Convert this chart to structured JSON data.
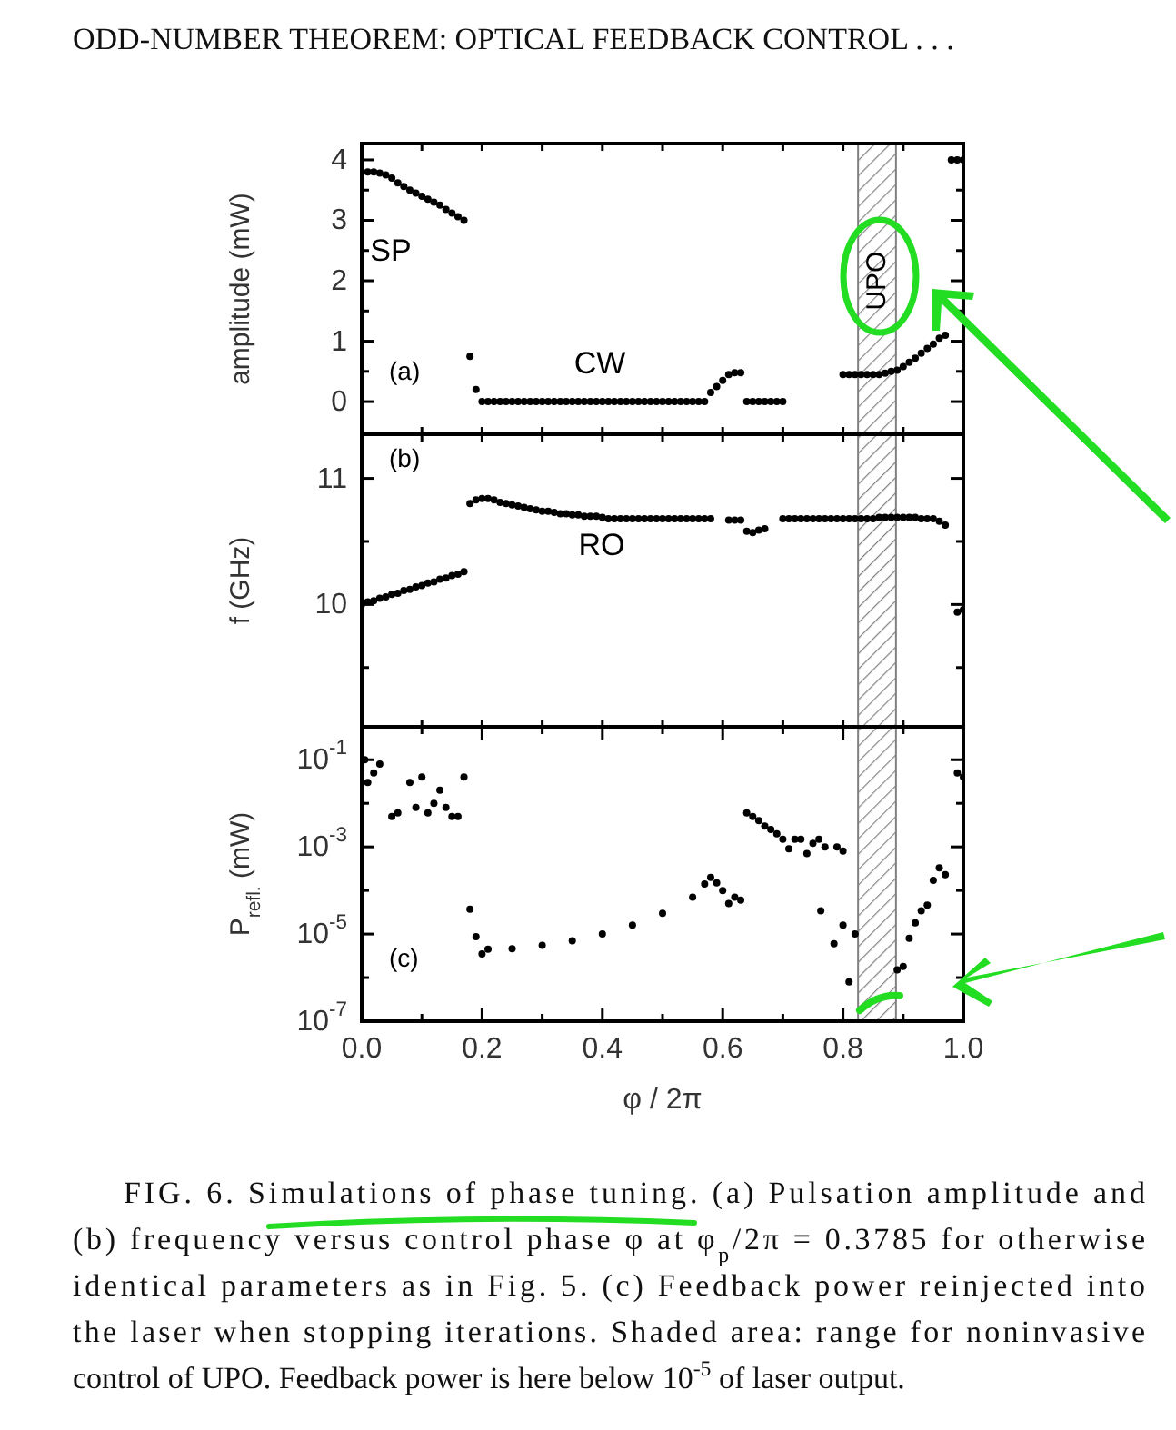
{
  "chart_data": [
    {
      "type": "scatter",
      "title": "ODD-NUMBER THEOREM: OPTICAL FEEDBACK CONTROL . . .",
      "ylabel": "amplitude (mW)",
      "marker": "circle",
      "tick_labels": "y",
      "xlim": [
        0,
        1
      ],
      "xticks": [
        {
          "value": 0,
          "label": null
        },
        {
          "value": 0.1,
          "label": null
        },
        {
          "value": 0.2,
          "label": null
        },
        {
          "value": 0.3,
          "label": null
        },
        {
          "value": 0.4,
          "label": null
        },
        {
          "value": 0.5,
          "label": null
        },
        {
          "value": 0.6,
          "label": null
        },
        {
          "value": 0.7,
          "label": null
        },
        {
          "value": 0.8,
          "label": null
        },
        {
          "value": 0.9,
          "label": null
        },
        {
          "value": 1,
          "label": null
        }
      ],
      "ylim": [
        -0.54,
        4.27
      ],
      "yticks": [
        0,
        {
          "value": 0.5,
          "label": null
        },
        1,
        {
          "value": 1.5,
          "label": null
        },
        2,
        {
          "value": 2.5,
          "label": null
        },
        3,
        {
          "value": 3.5,
          "label": null
        },
        4
      ],
      "bands": [
        {
          "axis": "x",
          "from": 0.825,
          "to": 0.888,
          "label": "UPO",
          "color": "#808080"
        }
      ],
      "annotations": [
        "(a)",
        "SP",
        "CW"
      ],
      "x": [
        0,
        0.01,
        0.02,
        0.03,
        0.04,
        0.05,
        0.06,
        0.07,
        0.08,
        0.09,
        0.1,
        0.11,
        0.12,
        0.13,
        0.14,
        0.15,
        0.16,
        0.17,
        0.18,
        0.19,
        0.2,
        0.21,
        0.22,
        0.23,
        0.24,
        0.25,
        0.26,
        0.27,
        0.28,
        0.29,
        0.3,
        0.31,
        0.32,
        0.33,
        0.34,
        0.35,
        0.36,
        0.37,
        0.38,
        0.39,
        0.4,
        0.41,
        0.42,
        0.43,
        0.44,
        0.45,
        0.46,
        0.47,
        0.48,
        0.49,
        0.5,
        0.51,
        0.52,
        0.53,
        0.54,
        0.55,
        0.56,
        0.57,
        0.58,
        0.59,
        0.6,
        0.61,
        0.62,
        0.63,
        0.64,
        0.65,
        0.66,
        0.67,
        0.68,
        0.69,
        0.7,
        0.8,
        0.81,
        0.82,
        0.83,
        0.84,
        0.85,
        0.86,
        0.87,
        0.88,
        0.89,
        0.9,
        0.91,
        0.92,
        0.93,
        0.94,
        0.95,
        0.96,
        0.97,
        0.98,
        0.99,
        1
      ],
      "series": [
        {
          "color": "#000000",
          "values": [
            3.8,
            3.8,
            3.8,
            3.78,
            3.75,
            3.7,
            3.62,
            3.56,
            3.5,
            3.45,
            3.4,
            3.35,
            3.3,
            3.25,
            3.18,
            3.12,
            3.06,
            3.0,
            0.75,
            0.2,
            0,
            0,
            0,
            0,
            0,
            0,
            0,
            0,
            0,
            0,
            0,
            0,
            0,
            0,
            0,
            0,
            0,
            0,
            0,
            0,
            0,
            0,
            0,
            0,
            0,
            0,
            0,
            0,
            0,
            0,
            0,
            0,
            0,
            0,
            0,
            0,
            0,
            0,
            0.15,
            0.25,
            0.35,
            0.45,
            0.48,
            0.48,
            0,
            0,
            0,
            0,
            0,
            0,
            0,
            0.45,
            0.45,
            0.45,
            0.45,
            0.45,
            0.45,
            0.45,
            0.47,
            0.5,
            0.52,
            0.58,
            0.65,
            0.72,
            0.8,
            0.88,
            0.95,
            1.05,
            1.1,
            4.0,
            4.0,
            4.0
          ]
        }
      ]
    },
    {
      "type": "scatter",
      "ylabel": "f (GHz)",
      "marker": "circle",
      "tick_labels": "y",
      "xlim": [
        0,
        1
      ],
      "xticks": [
        {
          "value": 0,
          "label": null
        },
        {
          "value": 0.1,
          "label": null
        },
        {
          "value": 0.2,
          "label": null
        },
        {
          "value": 0.3,
          "label": null
        },
        {
          "value": 0.4,
          "label": null
        },
        {
          "value": 0.5,
          "label": null
        },
        {
          "value": 0.6,
          "label": null
        },
        {
          "value": 0.7,
          "label": null
        },
        {
          "value": 0.8,
          "label": null
        },
        {
          "value": 0.9,
          "label": null
        },
        {
          "value": 1,
          "label": null
        }
      ],
      "ylim": [
        9.03,
        11.35
      ],
      "yticks": [
        {
          "value": 9.5,
          "label": null
        },
        10,
        {
          "value": 10.5,
          "label": null
        },
        11
      ],
      "bands": [
        {
          "axis": "x",
          "from": 0.825,
          "to": 0.888,
          "color": "#808080"
        }
      ],
      "annotations": [
        "(b)",
        "RO"
      ],
      "x": [
        0,
        0.01,
        0.02,
        0.03,
        0.04,
        0.05,
        0.06,
        0.07,
        0.08,
        0.09,
        0.1,
        0.11,
        0.12,
        0.13,
        0.14,
        0.15,
        0.16,
        0.17,
        0.18,
        0.19,
        0.2,
        0.21,
        0.22,
        0.23,
        0.24,
        0.25,
        0.26,
        0.27,
        0.28,
        0.29,
        0.3,
        0.31,
        0.32,
        0.33,
        0.34,
        0.35,
        0.36,
        0.37,
        0.38,
        0.39,
        0.4,
        0.41,
        0.42,
        0.43,
        0.44,
        0.45,
        0.46,
        0.47,
        0.48,
        0.49,
        0.5,
        0.51,
        0.52,
        0.53,
        0.54,
        0.55,
        0.56,
        0.57,
        0.58,
        0.61,
        0.62,
        0.63,
        0.64,
        0.65,
        0.66,
        0.67,
        0.7,
        0.71,
        0.72,
        0.73,
        0.74,
        0.75,
        0.76,
        0.77,
        0.78,
        0.79,
        0.8,
        0.81,
        0.82,
        0.83,
        0.84,
        0.85,
        0.86,
        0.87,
        0.88,
        0.89,
        0.9,
        0.91,
        0.92,
        0.93,
        0.94,
        0.95,
        0.96,
        0.97,
        0.99,
        1
      ],
      "series": [
        {
          "color": "#000000",
          "values": [
            10.0,
            10.02,
            10.03,
            10.05,
            10.06,
            10.08,
            10.09,
            10.11,
            10.12,
            10.14,
            10.15,
            10.17,
            10.18,
            10.2,
            10.21,
            10.23,
            10.24,
            10.26,
            10.8,
            10.83,
            10.84,
            10.84,
            10.83,
            10.81,
            10.8,
            10.79,
            10.78,
            10.77,
            10.76,
            10.75,
            10.74,
            10.74,
            10.73,
            10.72,
            10.72,
            10.71,
            10.71,
            10.7,
            10.7,
            10.7,
            10.69,
            10.68,
            10.68,
            10.68,
            10.68,
            10.68,
            10.68,
            10.68,
            10.68,
            10.68,
            10.68,
            10.68,
            10.68,
            10.68,
            10.68,
            10.68,
            10.68,
            10.68,
            10.68,
            10.67,
            10.67,
            10.67,
            10.58,
            10.57,
            10.59,
            10.6,
            10.68,
            10.68,
            10.68,
            10.68,
            10.68,
            10.68,
            10.68,
            10.68,
            10.68,
            10.68,
            10.68,
            10.68,
            10.68,
            10.68,
            10.68,
            10.68,
            10.69,
            10.69,
            10.69,
            10.69,
            10.69,
            10.69,
            10.69,
            10.68,
            10.68,
            10.68,
            10.66,
            10.63,
            9.94,
            9.96
          ]
        }
      ]
    },
    {
      "type": "scatter",
      "ylabel": "P$_{refl.}$ (mW)",
      "xlabel": "φ / 2π",
      "marker": "circle",
      "log": "y",
      "xlim": [
        0,
        1
      ],
      "xticks": [
        "0.0",
        {
          "value": 0.1,
          "label": null
        },
        {
          "value": 0.2,
          "label": "0.2"
        },
        {
          "value": 0.3,
          "label": null
        },
        {
          "value": 0.4,
          "label": "0.4"
        },
        {
          "value": 0.5,
          "label": null
        },
        {
          "value": 0.6,
          "label": "0.6"
        },
        {
          "value": 0.7,
          "label": null
        },
        {
          "value": 0.8,
          "label": "0.8"
        },
        {
          "value": 0.9,
          "label": null
        },
        {
          "value": 1,
          "label": "1.0"
        }
      ],
      "ylim": [
        1e-07,
        0.57
      ],
      "yticks": [
        {
          "value": 1e-07,
          "label": "10$^{-7}$"
        },
        {
          "value": 1e-06,
          "label": null
        },
        {
          "value": 1e-05,
          "label": "10$^{-5}$"
        },
        {
          "value": 0.0001,
          "label": null
        },
        {
          "value": 0.001,
          "label": "10$^{-3}$"
        },
        {
          "value": 0.01,
          "label": null
        },
        {
          "value": 0.1,
          "label": "10$^{-1}$"
        }
      ],
      "bands": [
        {
          "axis": "x",
          "from": 0.825,
          "to": 0.888,
          "color": "#808080"
        }
      ],
      "annotations": [
        "(c)",
        "FIG. 6. Simulations of phase tuning. (a) Pulsation amplitude and (b) frequency versus control phase φ at φ$_{p}$/2π = 0.3785 for otherwise identical parameters as in Fig. 5. (c) Feedback power reinjected into the laser when stopping iterations. Shaded area: range for noninvasive control of UPO. Feedback power is here below 10$^{-5}$ of laser output."
      ],
      "x": [
        0.005,
        0.01,
        0.02,
        0.03,
        0.05,
        0.06,
        0.08,
        0.09,
        0.1,
        0.11,
        0.12,
        0.13,
        0.14,
        0.15,
        0.16,
        0.17,
        0.18,
        0.19,
        0.2,
        0.21,
        0.25,
        0.3,
        0.35,
        0.4,
        0.45,
        0.5,
        0.55,
        0.57,
        0.58,
        0.59,
        0.6,
        0.61,
        0.62,
        0.63,
        0.64,
        0.65,
        0.66,
        0.67,
        0.68,
        0.69,
        0.7,
        0.71,
        0.72,
        0.73,
        0.74,
        0.75,
        0.76,
        0.77,
        0.79,
        0.8,
        0.763,
        0.785,
        0.8,
        0.81,
        0.82,
        0.89,
        0.9,
        0.91,
        0.92,
        0.93,
        0.94,
        0.95,
        0.96,
        0.97,
        0.99,
        1
      ],
      "series": [
        {
          "color": "#000000",
          "values": [
            0.1,
            0.03,
            0.05,
            0.08,
            0.005,
            0.006,
            0.03,
            0.008,
            0.04,
            0.006,
            0.01,
            0.02,
            0.008,
            0.005,
            0.005,
            0.04,
            3.7e-05,
            8.7e-06,
            3.5e-06,
            4.5e-06,
            4.6e-06,
            5.5e-06,
            7e-06,
            1e-05,
            1.6e-05,
            3e-05,
            7e-05,
            0.00014,
            0.0002,
            0.00015,
            0.0001,
            5e-05,
            7e-05,
            6e-05,
            0.006,
            0.005,
            0.004,
            0.003,
            0.0025,
            0.002,
            0.0015,
            0.0009,
            0.0015,
            0.0015,
            0.0007,
            0.0012,
            0.0015,
            0.001,
            0.001,
            0.0008,
            3.4e-05,
            6e-06,
            1.6e-05,
            8e-07,
            1e-05,
            1.5e-06,
            1.8e-06,
            8e-06,
            1.8e-05,
            3.4e-05,
            4.6e-05,
            0.00017,
            0.00033,
            0.00023,
            0.05,
            0.04
          ]
        }
      ]
    }
  ]
}
